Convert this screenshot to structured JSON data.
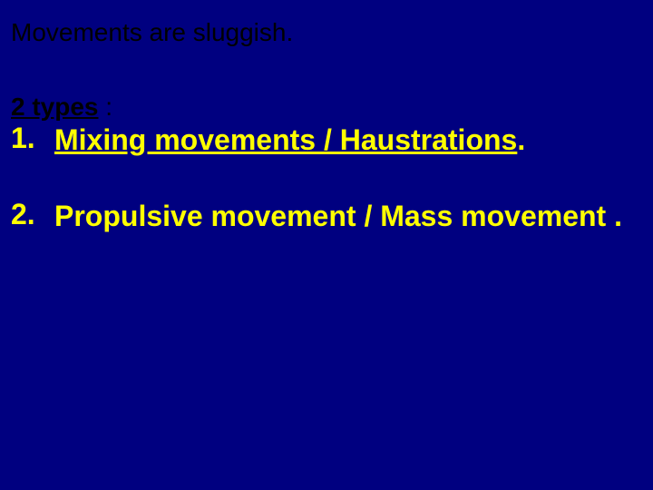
{
  "slide": {
    "background_color": "#000080",
    "intro": {
      "text": "Movements are sluggish.",
      "color": "#000000",
      "fontsize": 28,
      "font_family": "Comic Sans MS"
    },
    "subtitle": {
      "text": "2 types",
      "colon": " :",
      "color": "#000000",
      "fontsize": 28,
      "underline": true,
      "bold": true
    },
    "list": {
      "color": "#ffff00",
      "fontsize": 32,
      "bold": true,
      "items": [
        {
          "number": "1.",
          "text_underlined": "Mixing movements  / Haustrations",
          "text_plain": "."
        },
        {
          "number": "2.",
          "text_underlined": "",
          "text_plain": "Propulsive movement / Mass movement ."
        }
      ]
    }
  }
}
